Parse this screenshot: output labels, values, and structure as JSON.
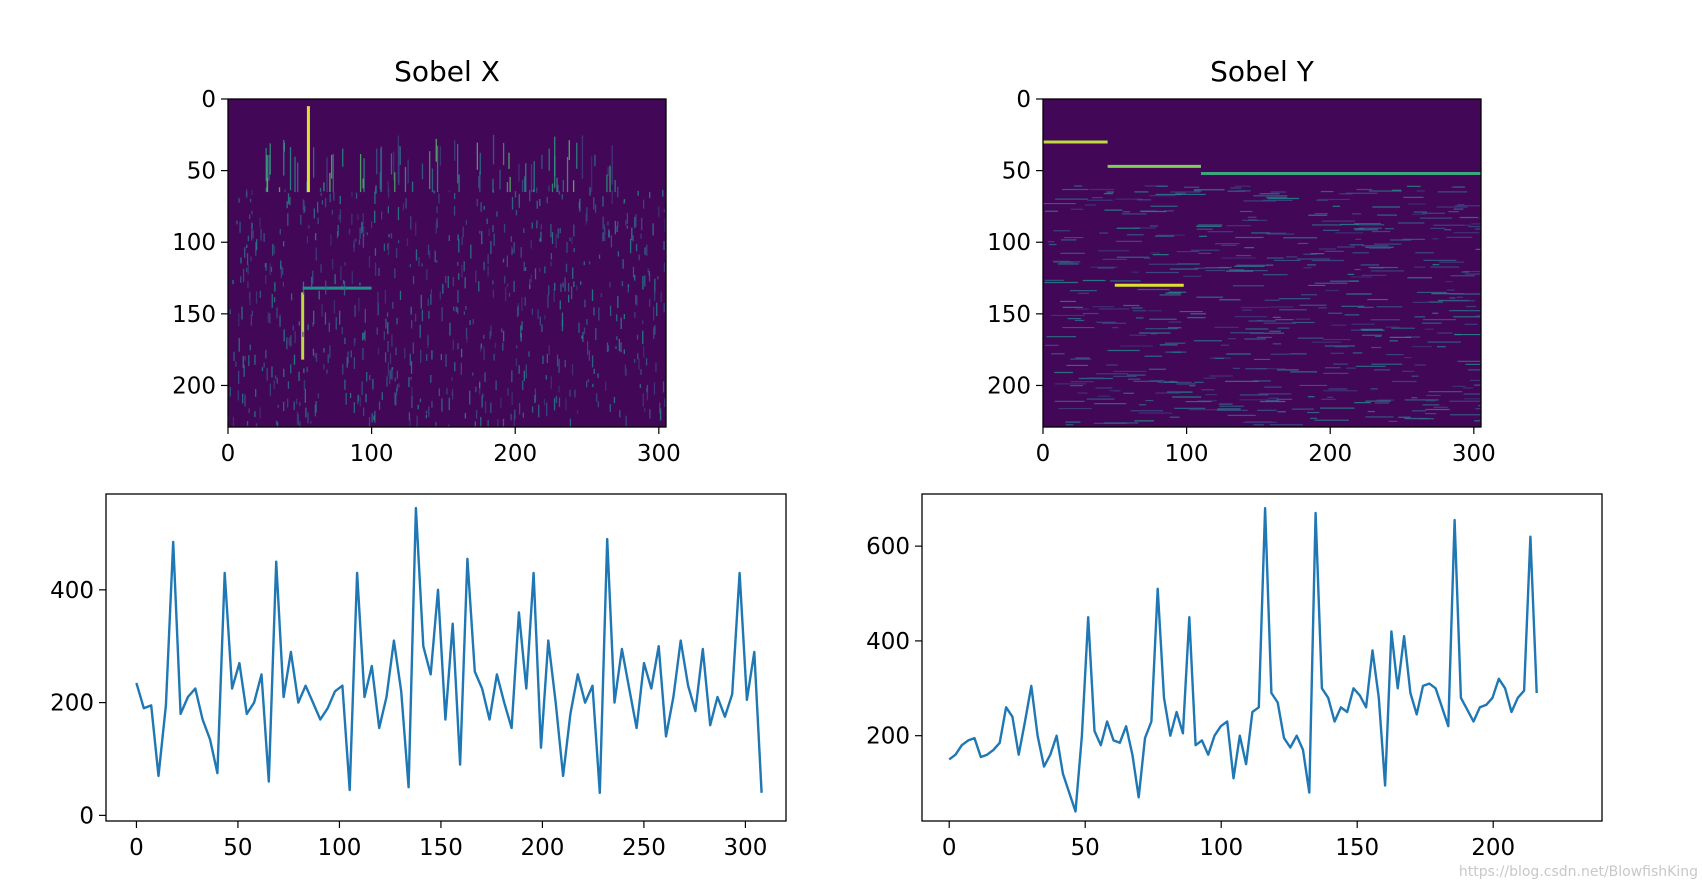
{
  "watermark": "https://blog.csdn.net/BlowfishKing",
  "chart_data": [
    {
      "type": "heatmap",
      "title": "Sobel X",
      "colormap": "viridis",
      "xlim": [
        0,
        305
      ],
      "ylim": [
        229,
        0
      ],
      "xticks": [
        0,
        100,
        200,
        300
      ],
      "yticks": [
        0,
        50,
        100,
        150,
        200
      ],
      "features": [
        {
          "kind": "vertical-streaks",
          "rows": [
            25,
            65
          ],
          "cols": [
            15,
            270
          ],
          "strength": 0.6
        },
        {
          "kind": "vertical-edge",
          "col": 56,
          "rows": [
            5,
            65
          ],
          "strength": 0.95
        },
        {
          "kind": "vertical-edge",
          "col": 52,
          "rows": [
            135,
            182
          ],
          "strength": 0.9
        },
        {
          "kind": "horizontal-edge",
          "row": 132,
          "cols": [
            52,
            100
          ],
          "strength": 0.5
        },
        {
          "kind": "texture-noise",
          "rows": [
            60,
            229
          ],
          "cols": [
            0,
            305
          ],
          "strength": 0.35
        }
      ]
    },
    {
      "type": "heatmap",
      "title": "Sobel Y",
      "colormap": "viridis",
      "xlim": [
        0,
        305
      ],
      "ylim": [
        229,
        0
      ],
      "xticks": [
        0,
        100,
        200,
        300
      ],
      "yticks": [
        0,
        50,
        100,
        150,
        200
      ],
      "features": [
        {
          "kind": "horizontal-edge",
          "row": 30,
          "cols": [
            0,
            45
          ],
          "strength": 0.9
        },
        {
          "kind": "horizontal-edge",
          "row": 47,
          "cols": [
            45,
            110
          ],
          "strength": 0.8
        },
        {
          "kind": "horizontal-edge",
          "row": 52,
          "cols": [
            110,
            305
          ],
          "strength": 0.6
        },
        {
          "kind": "horizontal-edge",
          "row": 130,
          "cols": [
            50,
            98
          ],
          "strength": 0.95
        },
        {
          "kind": "horizontal-streaks",
          "rows": [
            60,
            229
          ],
          "cols": [
            0,
            305
          ],
          "strength": 0.35
        }
      ]
    },
    {
      "type": "line",
      "title": "",
      "xlabel": "",
      "ylabel": "",
      "xlim": [
        -15,
        320
      ],
      "ylim": [
        -10,
        570
      ],
      "xticks": [
        0,
        50,
        100,
        150,
        200,
        250,
        300
      ],
      "yticks": [
        0,
        200,
        400
      ],
      "line_color": "#1f77b4",
      "series": [
        {
          "x_start": 0,
          "x_step": 1,
          "values": [
            235,
            190,
            195,
            70,
            195,
            485,
            180,
            210,
            225,
            170,
            135,
            75,
            430,
            225,
            270,
            180,
            200,
            250,
            60,
            450,
            210,
            290,
            200,
            230,
            200,
            170,
            190,
            220,
            230,
            45,
            430,
            210,
            265,
            155,
            210,
            310,
            220,
            50,
            545,
            300,
            250,
            400,
            170,
            340,
            90,
            455,
            255,
            225,
            170,
            250,
            200,
            155,
            360,
            225,
            430,
            120,
            310,
            200,
            70,
            180,
            250,
            200,
            230,
            40,
            490,
            200,
            295,
            225,
            155,
            270,
            225,
            300,
            140,
            210,
            310,
            230,
            185,
            295,
            160,
            210,
            175,
            215,
            430,
            205,
            290,
            40
          ]
        }
      ]
    },
    {
      "type": "line",
      "title": "",
      "xlabel": "",
      "ylabel": "",
      "xlim": [
        -10,
        240
      ],
      "ylim": [
        20,
        710
      ],
      "xticks": [
        0,
        50,
        100,
        150,
        200
      ],
      "yticks": [
        200,
        400,
        600
      ],
      "line_color": "#1f77b4",
      "series": [
        {
          "x_start": 0,
          "x_step": 1,
          "values": [
            150,
            160,
            180,
            190,
            195,
            155,
            160,
            170,
            185,
            260,
            240,
            160,
            230,
            305,
            200,
            135,
            160,
            200,
            120,
            80,
            40,
            200,
            450,
            210,
            180,
            230,
            190,
            185,
            220,
            160,
            70,
            195,
            230,
            510,
            280,
            200,
            250,
            205,
            450,
            180,
            190,
            160,
            200,
            220,
            230,
            110,
            200,
            140,
            250,
            260,
            680,
            290,
            270,
            195,
            175,
            200,
            170,
            80,
            670,
            300,
            280,
            230,
            260,
            250,
            300,
            285,
            260,
            380,
            280,
            95,
            420,
            300,
            410,
            290,
            245,
            305,
            310,
            300,
            260,
            220,
            655,
            280,
            255,
            230,
            260,
            265,
            280,
            320,
            300,
            250,
            280,
            295,
            620,
            290
          ]
        }
      ]
    }
  ]
}
